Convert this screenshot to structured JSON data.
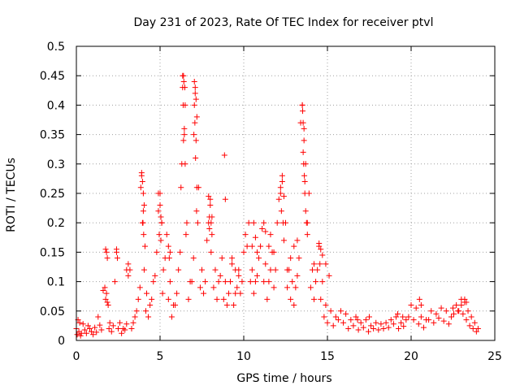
{
  "chart_data": {
    "type": "scatter",
    "title": "Day 231 of 2023, Rate Of TEC Index for receiver ptvl",
    "xlabel": "GPS time / hours",
    "ylabel": "ROTI / TECUs",
    "xlim": [
      0,
      25
    ],
    "ylim": [
      0,
      0.5
    ],
    "x_ticks": [
      0,
      5,
      10,
      15,
      20,
      25
    ],
    "x_tick_labels": [
      "0",
      "5",
      "10",
      "15",
      "20",
      "25"
    ],
    "y_ticks": [
      0,
      0.05,
      0.1,
      0.15,
      0.2,
      0.25,
      0.3,
      0.35,
      0.4,
      0.45,
      0.5
    ],
    "y_tick_labels": [
      "0",
      "0.05",
      "0.1",
      "0.15",
      "0.2",
      "0.25",
      "0.3",
      "0.35",
      "0.4",
      "0.45",
      "0.5"
    ],
    "grid": true,
    "marker": "plus",
    "color": "#ff0000",
    "series": [
      {
        "x": [
          0.0,
          0.1,
          0.2,
          0.3,
          0.5,
          0.7,
          0.9,
          1.1,
          1.3,
          1.5,
          1.7,
          1.8,
          1.9,
          2.0,
          2.2,
          2.4,
          2.6,
          2.8,
          3.0,
          3.2,
          3.4,
          3.6,
          3.8,
          3.9,
          4.0,
          4.1,
          4.2,
          4.4,
          4.6,
          4.8,
          5.0,
          5.1,
          5.2,
          5.4,
          5.6,
          5.8,
          6.0,
          6.2,
          6.3,
          6.4,
          6.5,
          6.6,
          6.8,
          7.0,
          7.1,
          7.2,
          7.3,
          7.5,
          7.7,
          7.9,
          8.0,
          8.1,
          8.3,
          8.5,
          8.7,
          8.9,
          9.1,
          9.3,
          9.5,
          9.7,
          9.9,
          10.1,
          10.3,
          10.5,
          10.7,
          10.9,
          11.1,
          11.3,
          11.5,
          11.7,
          11.9,
          12.1,
          12.3,
          12.5,
          12.7,
          12.9,
          13.1,
          13.3,
          13.5,
          13.6,
          13.7,
          13.9,
          14.1,
          14.3,
          14.5,
          14.7,
          14.9,
          15.2,
          15.5,
          15.8,
          16.1,
          16.4,
          16.7,
          17.0,
          17.3,
          17.6,
          17.9,
          18.2,
          18.5,
          18.8,
          19.1,
          19.4,
          19.7,
          20.0,
          20.3,
          20.6,
          20.9,
          21.2,
          21.5,
          21.8,
          22.1,
          22.4,
          22.7,
          23.0,
          23.2,
          23.4,
          23.6,
          23.8,
          24.0,
          0.05,
          0.15,
          0.25,
          0.4,
          0.6,
          0.8,
          1.0,
          1.2,
          1.4,
          1.6,
          1.75,
          1.85,
          1.95,
          2.1,
          2.3,
          2.5,
          2.7,
          2.9,
          3.1,
          3.3,
          3.5,
          3.7,
          3.85,
          3.95,
          4.05,
          4.15,
          4.3,
          4.5,
          4.7,
          4.9,
          5.05,
          5.15,
          5.3,
          5.5,
          5.7,
          5.9,
          6.1,
          6.25,
          6.35,
          6.45,
          6.55,
          6.7,
          6.9,
          7.05,
          7.15,
          7.25,
          7.4,
          7.6,
          7.8,
          7.95,
          8.05,
          8.2,
          8.4,
          8.6,
          8.8,
          9.0,
          9.2,
          9.4,
          9.6,
          9.8,
          10.0,
          10.2,
          10.4,
          10.6,
          10.8,
          11.0,
          11.2,
          11.4,
          11.6,
          11.8,
          12.0,
          12.2,
          12.4,
          12.6,
          12.8,
          13.0,
          13.2,
          13.4,
          13.55,
          13.65,
          13.8,
          14.0,
          14.2,
          14.4,
          14.6,
          14.8,
          15.0,
          15.35,
          15.65,
          15.95,
          16.25,
          16.55,
          16.85,
          17.15,
          17.45,
          17.75,
          18.05,
          18.35,
          18.65,
          18.95,
          19.25,
          19.55,
          19.85,
          20.15,
          20.45,
          20.75,
          21.05,
          21.35,
          21.65,
          21.95,
          22.25,
          22.55,
          22.85,
          23.1,
          23.3,
          23.5,
          23.7,
          23.9,
          6.35,
          6.42,
          6.48,
          6.38,
          6.45,
          6.5,
          6.4,
          7.05,
          7.1,
          7.15,
          7.08,
          7.12,
          7.18,
          7.02,
          7.2,
          13.5,
          13.55,
          13.6,
          13.52,
          13.58,
          13.62,
          13.65,
          13.7,
          13.75,
          13.8,
          3.9,
          3.95,
          4.0,
          4.05,
          3.98,
          4.02,
          8.85,
          8.9,
          7.9,
          8.0,
          8.1,
          8.05,
          7.95,
          12.2,
          12.3,
          12.4,
          12.25,
          12.35,
          11.2,
          11.3,
          10.6,
          10.7,
          10.5,
          14.5,
          14.6,
          14.7,
          14.55,
          1.75,
          1.8,
          1.85,
          2.4,
          2.45,
          4.9,
          5.0,
          5.1,
          5.05,
          4.95,
          5.5,
          5.6,
          5.55,
          3.0,
          3.1,
          9.3,
          9.5,
          9.7,
          10.8,
          11.5,
          11.6,
          11.8,
          12.6,
          12.8,
          13.0,
          13.2,
          14.2,
          14.9,
          15.1,
          20.5,
          20.6,
          22.5,
          22.8,
          23.2,
          23.3,
          23.0,
          19.2,
          19.5,
          17.5,
          16.8
        ],
        "y": [
          0.02,
          0.035,
          0.03,
          0.012,
          0.018,
          0.025,
          0.015,
          0.022,
          0.04,
          0.018,
          0.09,
          0.08,
          0.06,
          0.03,
          0.025,
          0.15,
          0.03,
          0.02,
          0.028,
          0.12,
          0.03,
          0.05,
          0.09,
          0.28,
          0.22,
          0.16,
          0.08,
          0.06,
          0.1,
          0.15,
          0.25,
          0.2,
          0.12,
          0.18,
          0.1,
          0.06,
          0.08,
          0.15,
          0.3,
          0.45,
          0.4,
          0.2,
          0.1,
          0.14,
          0.42,
          0.38,
          0.26,
          0.12,
          0.1,
          0.2,
          0.24,
          0.18,
          0.12,
          0.1,
          0.14,
          0.1,
          0.08,
          0.13,
          0.08,
          0.12,
          0.1,
          0.18,
          0.2,
          0.12,
          0.1,
          0.14,
          0.19,
          0.13,
          0.1,
          0.15,
          0.12,
          0.24,
          0.28,
          0.2,
          0.12,
          0.1,
          0.09,
          0.14,
          0.4,
          0.36,
          0.3,
          0.25,
          0.12,
          0.1,
          0.16,
          0.1,
          0.06,
          0.05,
          0.04,
          0.05,
          0.045,
          0.035,
          0.04,
          0.03,
          0.035,
          0.025,
          0.03,
          0.028,
          0.03,
          0.035,
          0.04,
          0.03,
          0.035,
          0.06,
          0.055,
          0.04,
          0.035,
          0.05,
          0.045,
          0.055,
          0.05,
          0.04,
          0.06,
          0.07,
          0.065,
          0.05,
          0.04,
          0.03,
          0.02,
          0.01,
          0.015,
          0.008,
          0.028,
          0.012,
          0.02,
          0.01,
          0.014,
          0.026,
          0.085,
          0.07,
          0.065,
          0.02,
          0.015,
          0.1,
          0.02,
          0.012,
          0.018,
          0.11,
          0.02,
          0.04,
          0.07,
          0.26,
          0.2,
          0.12,
          0.05,
          0.04,
          0.07,
          0.11,
          0.22,
          0.17,
          0.08,
          0.14,
          0.07,
          0.04,
          0.06,
          0.12,
          0.26,
          0.43,
          0.35,
          0.18,
          0.07,
          0.1,
          0.4,
          0.34,
          0.2,
          0.09,
          0.08,
          0.17,
          0.21,
          0.15,
          0.09,
          0.07,
          0.11,
          0.07,
          0.06,
          0.1,
          0.06,
          0.09,
          0.08,
          0.15,
          0.16,
          0.1,
          0.08,
          0.11,
          0.16,
          0.1,
          0.07,
          0.12,
          0.09,
          0.2,
          0.25,
          0.17,
          0.09,
          0.07,
          0.06,
          0.11,
          0.37,
          0.32,
          0.27,
          0.2,
          0.09,
          0.07,
          0.12,
          0.07,
          0.04,
          0.03,
          0.025,
          0.035,
          0.03,
          0.02,
          0.025,
          0.018,
          0.022,
          0.015,
          0.02,
          0.018,
          0.02,
          0.022,
          0.028,
          0.02,
          0.024,
          0.04,
          0.035,
          0.028,
          0.022,
          0.035,
          0.03,
          0.038,
          0.033,
          0.028,
          0.045,
          0.05,
          0.045,
          0.035,
          0.025,
          0.02,
          0.015,
          0.45,
          0.44,
          0.43,
          0.4,
          0.36,
          0.3,
          0.34,
          0.44,
          0.43,
          0.41,
          0.37,
          0.31,
          0.22,
          0.35,
          0.26,
          0.4,
          0.37,
          0.34,
          0.39,
          0.3,
          0.28,
          0.25,
          0.22,
          0.2,
          0.18,
          0.285,
          0.27,
          0.25,
          0.23,
          0.2,
          0.18,
          0.315,
          0.24,
          0.245,
          0.23,
          0.21,
          0.2,
          0.19,
          0.26,
          0.27,
          0.245,
          0.22,
          0.2,
          0.2,
          0.185,
          0.2,
          0.175,
          0.16,
          0.165,
          0.155,
          0.145,
          0.13,
          0.155,
          0.15,
          0.14,
          0.155,
          0.14,
          0.25,
          0.23,
          0.2,
          0.21,
          0.18,
          0.16,
          0.15,
          0.14,
          0.12,
          0.13,
          0.14,
          0.12,
          0.11,
          0.15,
          0.16,
          0.18,
          0.15,
          0.12,
          0.14,
          0.16,
          0.17,
          0.13,
          0.13,
          0.11,
          0.07,
          0.06,
          0.055,
          0.05,
          0.07,
          0.065,
          0.06,
          0.045,
          0.04,
          0.04,
          0.035
        ]
      }
    ]
  }
}
